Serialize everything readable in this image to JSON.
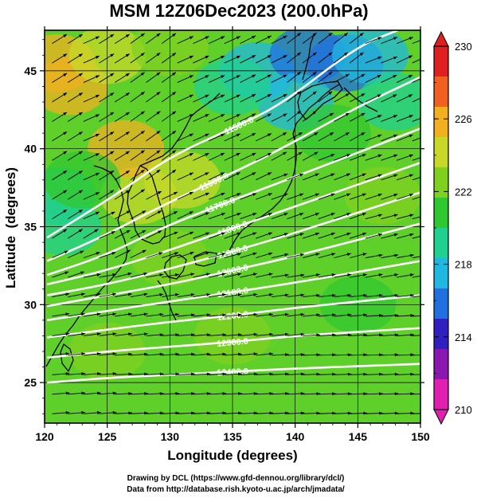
{
  "chart_data": {
    "type": "heatmap",
    "title": "MSM 12Z06Dec2023 (200.0hPa)",
    "xlabel": "Longitude (degrees)",
    "ylabel": "Latitude  (degrees)",
    "xlim": [
      120,
      150
    ],
    "ylim": [
      22.4,
      47.6
    ],
    "x_ticks": [
      "120",
      "125",
      "130",
      "135",
      "140",
      "145",
      "150"
    ],
    "y_ticks": [
      "25",
      "30",
      "35",
      "40",
      "45"
    ],
    "colorbar": {
      "range": [
        210,
        230
      ],
      "tick_labels": [
        "210",
        "214",
        "218",
        "222",
        "226",
        "230"
      ],
      "extend": "both",
      "colors": [
        "#e020b0",
        "#8a18b0",
        "#3020c0",
        "#2070e0",
        "#20b8e0",
        "#20d090",
        "#30c830",
        "#80d020",
        "#c8d828",
        "#f0b020",
        "#f06020",
        "#e02020"
      ]
    },
    "contours": [
      {
        "label": "11500.0",
        "value": 11500,
        "line": [
          [
            120.2,
            34.3
          ],
          [
            126,
            37.2
          ],
          [
            130,
            39.5
          ],
          [
            135.5,
            41.5
          ],
          [
            139,
            42.9
          ],
          [
            145,
            46.6
          ],
          [
            148.2,
            47.6
          ]
        ]
      },
      {
        "label": "11600.0",
        "value": 11600,
        "line": [
          [
            120.2,
            32.8
          ],
          [
            125,
            34.5
          ],
          [
            129,
            36.2
          ],
          [
            133.5,
            37.9
          ],
          [
            138,
            39.6
          ],
          [
            145,
            42.7
          ],
          [
            150,
            44.6
          ]
        ]
      },
      {
        "label": "11700.0",
        "value": 11700,
        "line": [
          [
            120.2,
            31.9
          ],
          [
            125,
            33.2
          ],
          [
            129,
            34.8
          ],
          [
            134,
            36.4
          ],
          [
            140,
            38.2
          ],
          [
            150,
            41.3
          ]
        ]
      },
      {
        "label": "11800.0",
        "value": 11800,
        "line": [
          [
            120.2,
            31.3
          ],
          [
            125,
            32.2
          ],
          [
            130,
            33.5
          ],
          [
            135,
            34.9
          ],
          [
            140,
            36.3
          ],
          [
            150,
            39.1
          ]
        ]
      },
      {
        "label": "11900.0",
        "value": 11900,
        "line": [
          [
            120.2,
            30.6
          ],
          [
            125,
            31.3
          ],
          [
            130,
            32.3
          ],
          [
            135,
            33.4
          ],
          [
            140,
            34.6
          ],
          [
            150,
            37.2
          ]
        ]
      },
      {
        "label": "12000.0",
        "value": 12000,
        "line": [
          [
            120.2,
            29.9
          ],
          [
            125,
            30.6
          ],
          [
            130,
            31.3
          ],
          [
            135,
            32.2
          ],
          [
            140,
            33.1
          ],
          [
            150,
            35.2
          ]
        ]
      },
      {
        "label": "12100.0",
        "value": 12100,
        "line": [
          [
            120.2,
            29.0
          ],
          [
            125,
            29.6
          ],
          [
            130,
            30.2
          ],
          [
            135,
            30.8
          ],
          [
            140,
            31.4
          ],
          [
            150,
            32.8
          ]
        ]
      },
      {
        "label": "12200.0",
        "value": 12200,
        "line": [
          [
            120.2,
            27.9
          ],
          [
            125,
            28.4
          ],
          [
            130,
            28.9
          ],
          [
            135,
            29.3
          ],
          [
            140,
            29.8
          ],
          [
            150,
            30.6
          ]
        ]
      },
      {
        "label": "12300.0",
        "value": 12300,
        "line": [
          [
            120.2,
            26.6
          ],
          [
            125,
            27.0
          ],
          [
            130,
            27.3
          ],
          [
            135,
            27.6
          ],
          [
            140,
            28.0
          ],
          [
            150,
            28.5
          ]
        ]
      },
      {
        "label": "12400.0",
        "value": 12400,
        "line": [
          [
            120.2,
            25.0
          ],
          [
            125,
            25.3
          ],
          [
            130,
            25.5
          ],
          [
            135,
            25.7
          ],
          [
            140,
            25.9
          ],
          [
            150,
            26.2
          ]
        ]
      }
    ],
    "shading": [
      {
        "lon": 121,
        "lat": 45.5,
        "value": 226.5
      },
      {
        "lon": 122,
        "lat": 44,
        "value": 225
      },
      {
        "lon": 125,
        "lat": 46,
        "value": 224
      },
      {
        "lon": 130,
        "lat": 46.5,
        "value": 223
      },
      {
        "lon": 127.5,
        "lat": 37,
        "value": 224.5
      },
      {
        "lon": 126.5,
        "lat": 40,
        "value": 225
      },
      {
        "lon": 131,
        "lat": 38,
        "value": 224
      },
      {
        "lon": 121,
        "lat": 37,
        "value": 218.5
      },
      {
        "lon": 121.5,
        "lat": 35,
        "value": 219.5
      },
      {
        "lon": 123,
        "lat": 38,
        "value": 221.5
      },
      {
        "lon": 137,
        "lat": 45,
        "value": 217
      },
      {
        "lon": 141,
        "lat": 46,
        "value": 215.5
      },
      {
        "lon": 144,
        "lat": 45.5,
        "value": 215
      },
      {
        "lon": 146,
        "lat": 46,
        "value": 217
      },
      {
        "lon": 140,
        "lat": 43,
        "value": 218
      },
      {
        "lon": 135,
        "lat": 44,
        "value": 219.5
      },
      {
        "lon": 148,
        "lat": 43,
        "value": 219.5
      },
      {
        "lon": 143,
        "lat": 41,
        "value": 220.5
      },
      {
        "lon": 145,
        "lat": 30,
        "value": 221.5
      },
      {
        "lon": 135,
        "lat": 28,
        "value": 222
      },
      {
        "lon": 125,
        "lat": 27,
        "value": 223
      },
      {
        "lon": 130,
        "lat": 33,
        "value": 223
      },
      {
        "lon": 147,
        "lat": 37,
        "value": 222
      }
    ],
    "wind_vectors": {
      "lon_spacing": 1.25,
      "lat_spacing": 1.25,
      "direction": "west-southwest to east-northeast, following the contours"
    },
    "grid": true,
    "footer": [
      "Drawing by DCL (https://www.gfd-dennou.org/library/dcl/)",
      "Data from http://database.rish.kyoto-u.ac.jp/arch/jmadata/"
    ]
  }
}
